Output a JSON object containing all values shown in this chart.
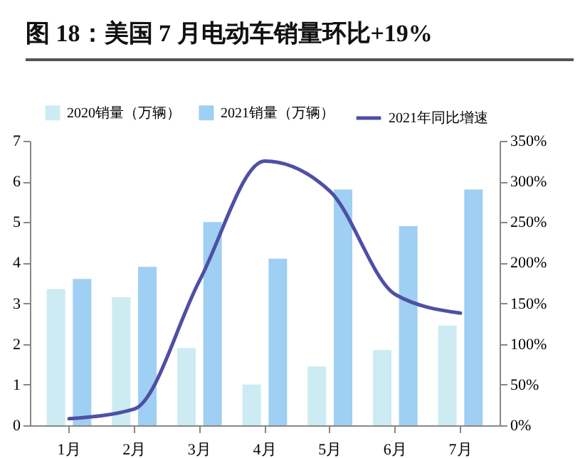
{
  "chart_data": {
    "type": "bar",
    "title": "图 18：美国 7 月电动车销量环比+19%",
    "categories": [
      "1月",
      "2月",
      "3月",
      "4月",
      "5月",
      "6月",
      "7月"
    ],
    "series": [
      {
        "name": "2020销量（万辆）",
        "color": "#cdebf2",
        "values": [
          3.35,
          3.15,
          1.9,
          1.0,
          1.45,
          1.85,
          2.45
        ]
      },
      {
        "name": "2021销量（万辆）",
        "color": "#9fcff2",
        "values": [
          3.6,
          3.9,
          5.0,
          4.1,
          5.8,
          4.9,
          5.8
        ]
      },
      {
        "name": "2021年同比增速",
        "type": "line",
        "axis": "y2",
        "color": "#4f4fa6",
        "values": [
          8,
          20,
          178,
          325,
          288,
          161,
          138
        ]
      }
    ],
    "ylim": [
      0,
      7
    ],
    "yticks": [
      0,
      1,
      2,
      3,
      4,
      5,
      6,
      7
    ],
    "y2lim": [
      0,
      350
    ],
    "y2ticks": [
      {
        "value": 0,
        "label": "0%"
      },
      {
        "value": 50,
        "label": "50%"
      },
      {
        "value": 100,
        "label": "100%"
      },
      {
        "value": 150,
        "label": "150%"
      },
      {
        "value": 200,
        "label": "200%"
      },
      {
        "value": 250,
        "label": "250%"
      },
      {
        "value": 300,
        "label": "300%"
      },
      {
        "value": 350,
        "label": "350%"
      }
    ],
    "grid": false,
    "legend": "top"
  }
}
